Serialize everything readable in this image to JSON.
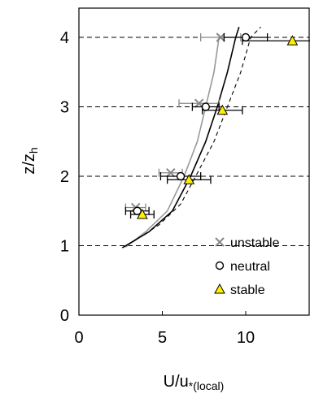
{
  "chart_data": {
    "type": "scatter",
    "xlim": [
      0,
      14
    ],
    "ylim": [
      0,
      4.5
    ],
    "xticks": [
      "0",
      "5",
      "10"
    ],
    "yticks": [
      "0",
      "1",
      "2",
      "3",
      "4"
    ],
    "xlabel": {
      "main": "U/u",
      "sub": "*(local)"
    },
    "ylabel": {
      "main": "z/z",
      "sub": "h"
    },
    "ref_lines_y": [
      1,
      2,
      3,
      4
    ],
    "legend_position": "lower-right",
    "series": [
      {
        "name": "unstable",
        "marker": "x",
        "color": "#888888",
        "points": [
          {
            "x": 3.4,
            "y": 1.55,
            "xerr": 0.6
          },
          {
            "x": 5.5,
            "y": 2.05,
            "xerr": 0.7
          },
          {
            "x": 7.2,
            "y": 3.05,
            "xerr": 1.2
          },
          {
            "x": 8.5,
            "y": 4.0,
            "xerr": 1.2
          }
        ]
      },
      {
        "name": "neutral",
        "marker": "circle",
        "color": "#000000",
        "points": [
          {
            "x": 3.5,
            "y": 1.5,
            "xerr": 0.7
          },
          {
            "x": 6.1,
            "y": 2.0,
            "xerr": 1.2
          },
          {
            "x": 7.6,
            "y": 3.0,
            "xerr": 0.8
          },
          {
            "x": 10.0,
            "y": 4.0,
            "xerr": 1.3
          }
        ]
      },
      {
        "name": "stable",
        "marker": "triangle",
        "color": "#ffee00",
        "points": [
          {
            "x": 3.8,
            "y": 1.45,
            "xerr": 0.7
          },
          {
            "x": 6.6,
            "y": 1.95,
            "xerr": 1.3
          },
          {
            "x": 8.6,
            "y": 2.95,
            "xerr": 1.2
          },
          {
            "x": 12.8,
            "y": 3.95,
            "xerr": 3.0
          }
        ]
      }
    ],
    "curves": [
      {
        "style": "solid-gray",
        "color": "#999999",
        "points": [
          [
            2.8,
            0.98
          ],
          [
            4.0,
            1.2
          ],
          [
            5.3,
            1.5
          ],
          [
            6.3,
            2.0
          ],
          [
            7.1,
            2.5
          ],
          [
            7.6,
            3.0
          ],
          [
            8.1,
            3.5
          ],
          [
            8.4,
            4.0
          ]
        ]
      },
      {
        "style": "solid-black",
        "color": "#000000",
        "points": [
          [
            2.6,
            0.97
          ],
          [
            4.2,
            1.2
          ],
          [
            5.6,
            1.5
          ],
          [
            6.7,
            2.0
          ],
          [
            7.6,
            2.5
          ],
          [
            8.3,
            3.0
          ],
          [
            8.9,
            3.5
          ],
          [
            9.4,
            4.0
          ],
          [
            9.6,
            4.15
          ]
        ]
      },
      {
        "style": "dashed-black",
        "color": "#000000",
        "points": [
          [
            3.2,
            1.05
          ],
          [
            4.8,
            1.3
          ],
          [
            6.1,
            1.6
          ],
          [
            7.0,
            2.0
          ],
          [
            8.1,
            2.5
          ],
          [
            8.9,
            3.0
          ],
          [
            9.7,
            3.5
          ],
          [
            10.3,
            4.0
          ],
          [
            10.9,
            4.15
          ]
        ]
      }
    ]
  }
}
